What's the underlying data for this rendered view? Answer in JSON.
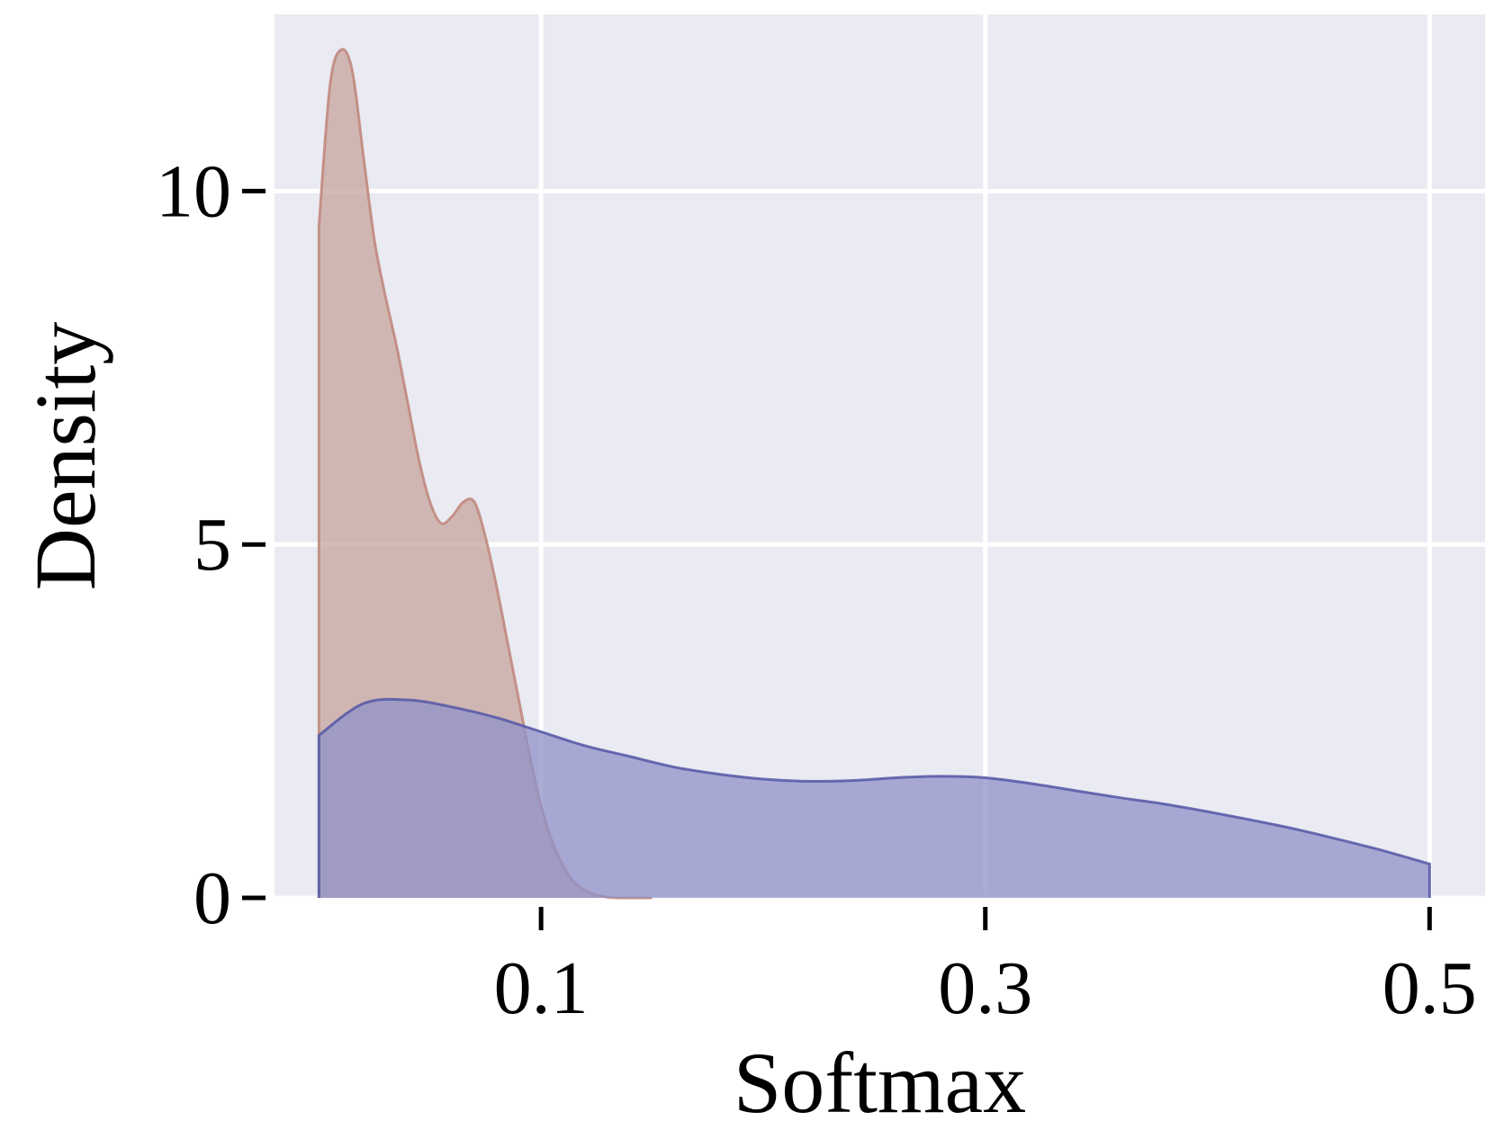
{
  "chart_data": {
    "type": "area",
    "xlabel": "Softmax",
    "ylabel": "Density",
    "xlim": [
      -0.02,
      0.525
    ],
    "ylim": [
      0,
      12.5
    ],
    "xticks": [
      0.1,
      0.3,
      0.5
    ],
    "xtick_labels": [
      "0.1",
      "0.3",
      "0.5"
    ],
    "yticks": [
      0,
      5,
      10
    ],
    "ytick_labels": [
      "0",
      "5",
      "10"
    ],
    "grid": true,
    "background": "#eaeaf2",
    "series": [
      {
        "color": "#c08a7e",
        "fill_color": "#c7a49c",
        "x": [
          0.0,
          0.005,
          0.01,
          0.015,
          0.02,
          0.025,
          0.03,
          0.035,
          0.04,
          0.045,
          0.05,
          0.055,
          0.06,
          0.065,
          0.07,
          0.075,
          0.08,
          0.085,
          0.09,
          0.095,
          0.1,
          0.105,
          0.11,
          0.115,
          0.12,
          0.125,
          0.13,
          0.135,
          0.14,
          0.145,
          0.15
        ],
        "y": [
          9.5,
          11.5,
          12.0,
          11.7,
          10.5,
          9.3,
          8.5,
          7.8,
          7.0,
          6.2,
          5.6,
          5.3,
          5.4,
          5.6,
          5.6,
          5.1,
          4.4,
          3.6,
          2.8,
          2.0,
          1.3,
          0.8,
          0.45,
          0.22,
          0.1,
          0.04,
          0.01,
          0.0,
          0.0,
          0.0,
          0.0
        ]
      },
      {
        "color": "#5a5ca8",
        "fill_color": "#8f92c8",
        "x": [
          0.0,
          0.02,
          0.04,
          0.06,
          0.08,
          0.1,
          0.12,
          0.14,
          0.16,
          0.18,
          0.2,
          0.22,
          0.24,
          0.26,
          0.28,
          0.3,
          0.32,
          0.34,
          0.36,
          0.38,
          0.4,
          0.42,
          0.44,
          0.46,
          0.48,
          0.5
        ],
        "y": [
          2.3,
          2.75,
          2.8,
          2.7,
          2.55,
          2.35,
          2.15,
          2.0,
          1.85,
          1.75,
          1.68,
          1.65,
          1.66,
          1.7,
          1.72,
          1.7,
          1.62,
          1.52,
          1.42,
          1.33,
          1.22,
          1.1,
          0.97,
          0.82,
          0.66,
          0.48
        ]
      }
    ]
  }
}
